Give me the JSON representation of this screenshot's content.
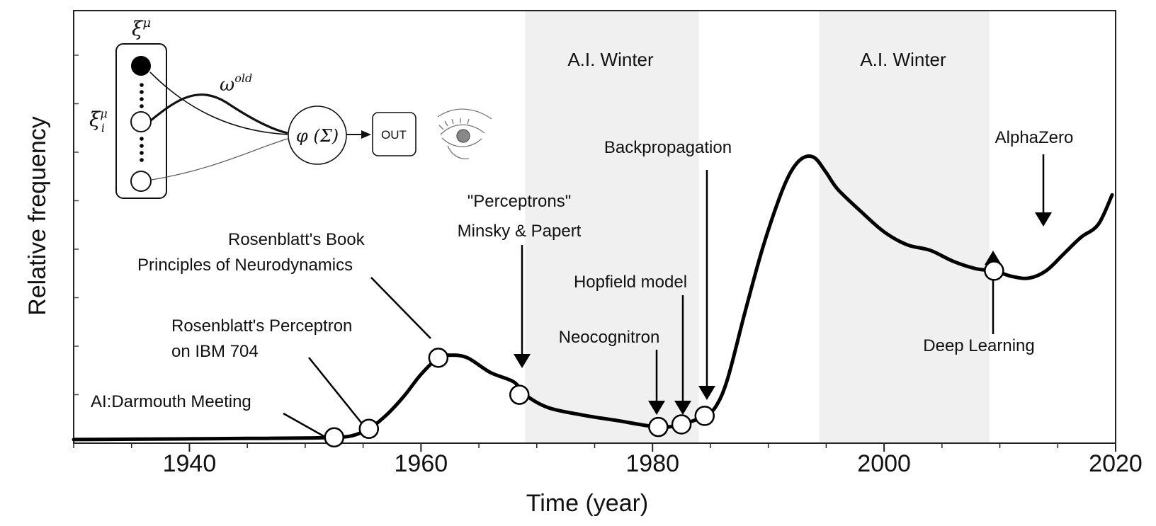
{
  "chart_data": {
    "type": "line",
    "title": "",
    "xlabel": "Time (year)",
    "ylabel": "Relative frequency",
    "xlim": [
      1930,
      2020
    ],
    "ylim": [
      0,
      1
    ],
    "x_ticks": [
      1940,
      1960,
      1980,
      2000,
      2020
    ],
    "grid": false,
    "series": [
      {
        "x": [
          1930,
          1935,
          1940,
          1945,
          1950,
          1952.5,
          1954,
          1955.5,
          1957,
          1958.5,
          1960,
          1961.5,
          1962.5,
          1964,
          1966,
          1968,
          1969,
          1971,
          1974,
          1977,
          1980.5,
          1982.5,
          1984.5,
          1985.5,
          1986.5,
          1988,
          1989.5,
          1991,
          1992,
          1993,
          1994,
          1995,
          1996,
          1998,
          2000,
          2002,
          2004,
          2006,
          2008,
          2009.5,
          2011,
          2012.5,
          2014,
          2015.5,
          2017,
          2018.5,
          2019.7
        ],
        "y": [
          0.004,
          0.005,
          0.006,
          0.007,
          0.008,
          0.01,
          0.014,
          0.033,
          0.07,
          0.12,
          0.18,
          0.225,
          0.232,
          0.225,
          0.185,
          0.16,
          0.125,
          0.09,
          0.07,
          0.055,
          0.038,
          0.045,
          0.068,
          0.095,
          0.17,
          0.35,
          0.52,
          0.66,
          0.73,
          0.765,
          0.765,
          0.725,
          0.68,
          0.62,
          0.565,
          0.53,
          0.515,
          0.485,
          0.465,
          0.46,
          0.445,
          0.44,
          0.46,
          0.505,
          0.55,
          0.585,
          0.665
        ],
        "markers": [
          {
            "x": 1952.5,
            "y": 0.01,
            "label": "AI:Darmouth Meeting"
          },
          {
            "x": 1955.5,
            "y": 0.033,
            "label": "Rosenblatt's Perceptron on IBM 704"
          },
          {
            "x": 1961.5,
            "y": 0.225,
            "label": "Rosenblatt's Book Principles of Neurodynamics"
          },
          {
            "x": 1968.5,
            "y": 0.125,
            "label": "\"Perceptrons\" Minsky & Papert"
          },
          {
            "x": 1980.5,
            "y": 0.038,
            "label": "Neocognitron"
          },
          {
            "x": 1982.5,
            "y": 0.045,
            "label": "Hopfield model"
          },
          {
            "x": 1984.5,
            "y": 0.068,
            "label": "Backpropagation"
          },
          {
            "x": 2009.5,
            "y": 0.46,
            "label": "Deep Learning"
          }
        ]
      }
    ],
    "shaded_regions": [
      {
        "x_start": 1969,
        "x_end": 1984,
        "label": "A.I. Winter",
        "color": "#f0f0f0"
      },
      {
        "x_start": 1994.4,
        "x_end": 2009.1,
        "label": "A.I. Winter",
        "color": "#f0f0f0"
      }
    ],
    "annotations": {
      "darmouth": "AI:Darmouth Meeting",
      "perceptron_ibm_l1": "Rosenblatt's Perceptron",
      "perceptron_ibm_l2": "on IBM 704",
      "book_l1": "Rosenblatt's Book",
      "book_l2": "Principles of Neurodynamics",
      "minsky_l1": "\"Perceptrons\"",
      "minsky_l2": "Minsky & Papert",
      "neocognitron": "Neocognitron",
      "hopfield": "Hopfield model",
      "backprop": "Backpropagation",
      "deep_learning": "Deep Learning",
      "alphazero": "AlphaZero"
    },
    "inset": {
      "xi_mu": "ξ",
      "mu": "μ",
      "xi": "ξ",
      "sub_i": "i",
      "omega": "ω",
      "old": "old",
      "phi_sigma": "φ (Σ)",
      "out": "OUT"
    },
    "colors": {
      "line": "#000000",
      "winter_line": "#444444",
      "shade": "#f0f0f0"
    }
  }
}
